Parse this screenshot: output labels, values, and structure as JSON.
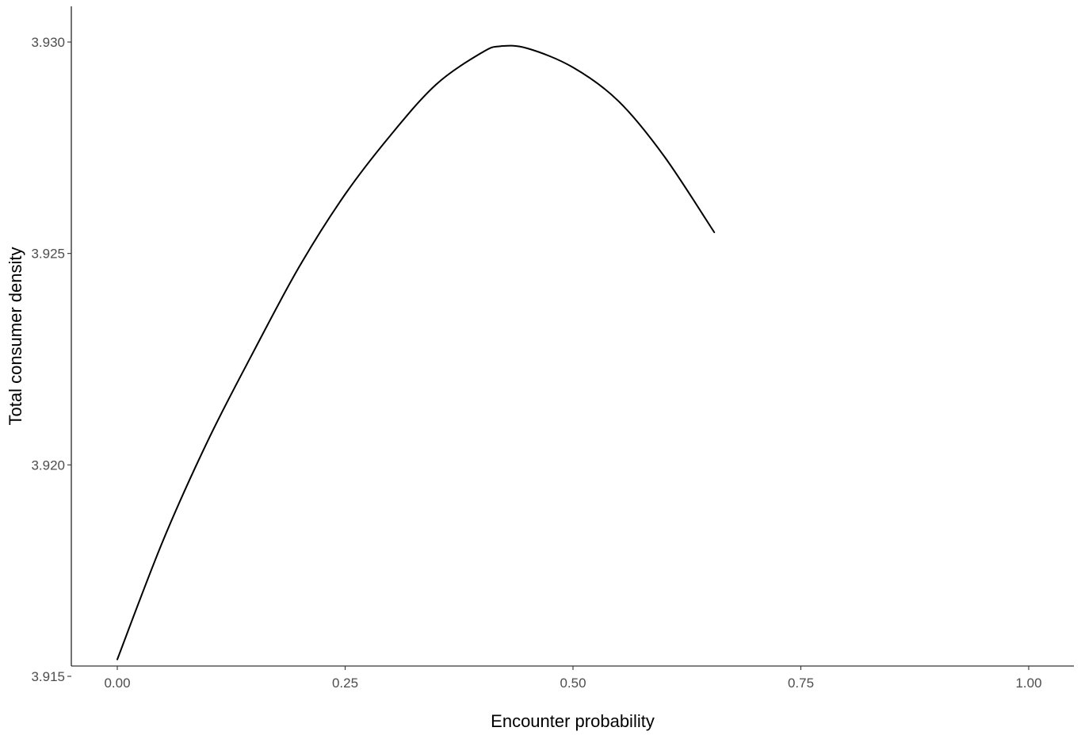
{
  "chart_data": {
    "type": "line",
    "title": "",
    "xlabel": "Encounter probability",
    "ylabel": "Total consumer density",
    "xlim": [
      0,
      1
    ],
    "ylim": [
      3.915,
      3.93
    ],
    "x_ticks": [
      0,
      0.25,
      0.5,
      0.75,
      1
    ],
    "x_tick_labels": [
      "0.00",
      "0.25",
      "0.50",
      "0.75",
      "1.00"
    ],
    "y_ticks": [
      3.915,
      3.92,
      3.925,
      3.93
    ],
    "y_tick_labels": [
      "3.915",
      "3.920",
      "3.925",
      "3.930"
    ],
    "grid": false,
    "legend": "none",
    "line_color": "#000000",
    "series": [
      {
        "x": [
          0.0,
          0.05,
          0.1,
          0.15,
          0.2,
          0.25,
          0.3,
          0.35,
          0.4,
          0.42,
          0.45,
          0.5,
          0.55,
          0.6,
          0.655
        ],
        "y": [
          3.9154,
          3.9182,
          3.9206,
          3.9227,
          3.9247,
          3.9264,
          3.9278,
          3.929,
          3.92975,
          3.9299,
          3.92985,
          3.9294,
          3.9286,
          3.9273,
          3.9255
        ]
      }
    ]
  }
}
